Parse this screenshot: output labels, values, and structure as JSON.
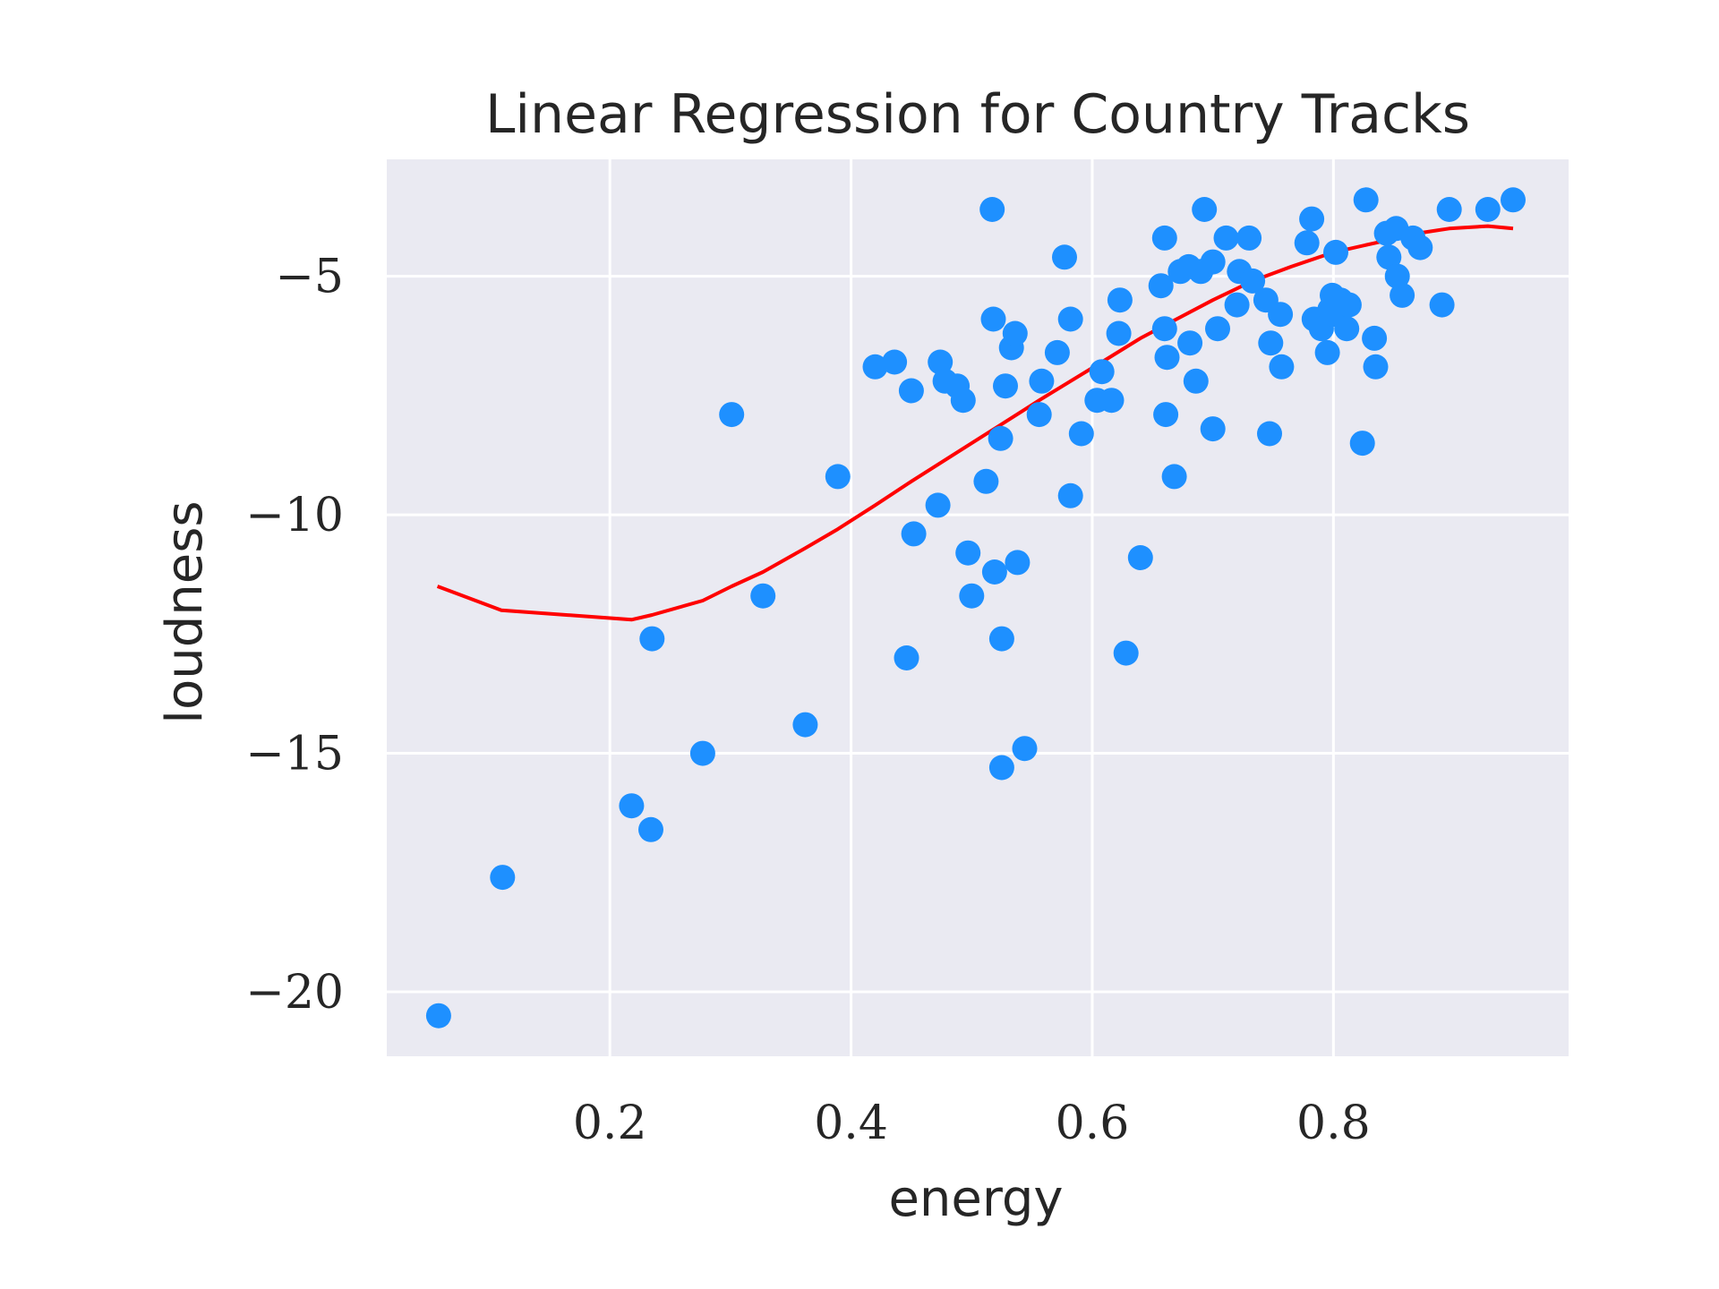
{
  "chart_data": {
    "type": "scatter",
    "title": "Linear Regression for Country Tracks",
    "xlabel": "energy",
    "ylabel": "loudness",
    "xlim": [
      0.015,
      0.995
    ],
    "ylim": [
      -21.35,
      -2.55
    ],
    "xticks": [
      0.2,
      0.4,
      0.6,
      0.8
    ],
    "xtick_labels": [
      "0.2",
      "0.4",
      "0.6",
      "0.8"
    ],
    "yticks": [
      -5,
      -10,
      -15,
      -20
    ],
    "ytick_labels": [
      "−5",
      "−10",
      "−15",
      "−20"
    ],
    "grid": true,
    "point_color": "#1e90ff",
    "line_color": "#ff0000",
    "background_color": "#eaeaf2",
    "series": [
      {
        "type": "scatter",
        "points": [
          [
            0.058,
            -20.5
          ],
          [
            0.111,
            -17.6
          ],
          [
            0.218,
            -16.1
          ],
          [
            0.234,
            -16.6
          ],
          [
            0.235,
            -12.6
          ],
          [
            0.277,
            -15.0
          ],
          [
            0.301,
            -7.9
          ],
          [
            0.327,
            -11.7
          ],
          [
            0.362,
            -14.4
          ],
          [
            0.389,
            -9.2
          ],
          [
            0.42,
            -6.9
          ],
          [
            0.436,
            -6.8
          ],
          [
            0.446,
            -13.0
          ],
          [
            0.45,
            -7.4
          ],
          [
            0.452,
            -10.4
          ],
          [
            0.472,
            -9.8
          ],
          [
            0.474,
            -6.8
          ],
          [
            0.478,
            -7.2
          ],
          [
            0.488,
            -7.3
          ],
          [
            0.493,
            -7.6
          ],
          [
            0.497,
            -10.8
          ],
          [
            0.5,
            -11.7
          ],
          [
            0.512,
            -9.3
          ],
          [
            0.517,
            -3.6
          ],
          [
            0.518,
            -5.9
          ],
          [
            0.519,
            -11.2
          ],
          [
            0.524,
            -8.4
          ],
          [
            0.525,
            -15.3
          ],
          [
            0.525,
            -12.6
          ],
          [
            0.528,
            -7.3
          ],
          [
            0.533,
            -6.5
          ],
          [
            0.536,
            -6.2
          ],
          [
            0.538,
            -11.0
          ],
          [
            0.544,
            -14.9
          ],
          [
            0.556,
            -7.9
          ],
          [
            0.558,
            -7.2
          ],
          [
            0.571,
            -6.6
          ],
          [
            0.577,
            -4.6
          ],
          [
            0.582,
            -5.9
          ],
          [
            0.582,
            -9.6
          ],
          [
            0.591,
            -8.3
          ],
          [
            0.604,
            -7.6
          ],
          [
            0.608,
            -7.0
          ],
          [
            0.616,
            -7.6
          ],
          [
            0.622,
            -6.2
          ],
          [
            0.623,
            -5.5
          ],
          [
            0.628,
            -12.9
          ],
          [
            0.64,
            -10.9
          ],
          [
            0.657,
            -5.2
          ],
          [
            0.66,
            -4.2
          ],
          [
            0.66,
            -6.1
          ],
          [
            0.661,
            -7.9
          ],
          [
            0.662,
            -6.7
          ],
          [
            0.668,
            -9.2
          ],
          [
            0.673,
            -4.9
          ],
          [
            0.68,
            -4.8
          ],
          [
            0.681,
            -6.4
          ],
          [
            0.686,
            -7.2
          ],
          [
            0.69,
            -4.9
          ],
          [
            0.693,
            -3.6
          ],
          [
            0.7,
            -8.2
          ],
          [
            0.7,
            -4.7
          ],
          [
            0.704,
            -6.1
          ],
          [
            0.711,
            -4.2
          ],
          [
            0.72,
            -5.6
          ],
          [
            0.722,
            -4.9
          ],
          [
            0.73,
            -4.2
          ],
          [
            0.733,
            -5.1
          ],
          [
            0.744,
            -5.5
          ],
          [
            0.747,
            -8.3
          ],
          [
            0.748,
            -6.4
          ],
          [
            0.756,
            -5.8
          ],
          [
            0.757,
            -6.9
          ],
          [
            0.778,
            -4.3
          ],
          [
            0.782,
            -3.8
          ],
          [
            0.784,
            -5.9
          ],
          [
            0.79,
            -6.1
          ],
          [
            0.795,
            -6.6
          ],
          [
            0.797,
            -5.7
          ],
          [
            0.799,
            -5.4
          ],
          [
            0.8,
            -5.8
          ],
          [
            0.802,
            -4.5
          ],
          [
            0.806,
            -5.5
          ],
          [
            0.811,
            -6.1
          ],
          [
            0.813,
            -5.6
          ],
          [
            0.824,
            -8.5
          ],
          [
            0.827,
            -3.4
          ],
          [
            0.834,
            -6.3
          ],
          [
            0.835,
            -6.9
          ],
          [
            0.844,
            -4.1
          ],
          [
            0.846,
            -4.6
          ],
          [
            0.852,
            -4.0
          ],
          [
            0.853,
            -5.0
          ],
          [
            0.857,
            -5.4
          ],
          [
            0.866,
            -4.2
          ],
          [
            0.872,
            -4.4
          ],
          [
            0.89,
            -5.6
          ],
          [
            0.896,
            -3.6
          ],
          [
            0.928,
            -3.6
          ],
          [
            0.949,
            -3.4
          ]
        ]
      },
      {
        "type": "line",
        "points": [
          [
            0.057,
            -11.5
          ],
          [
            0.11,
            -12.0
          ],
          [
            0.218,
            -12.2
          ],
          [
            0.235,
            -12.1
          ],
          [
            0.277,
            -11.8
          ],
          [
            0.301,
            -11.5
          ],
          [
            0.327,
            -11.2
          ],
          [
            0.362,
            -10.7
          ],
          [
            0.389,
            -10.3
          ],
          [
            0.42,
            -9.8
          ],
          [
            0.45,
            -9.3
          ],
          [
            0.475,
            -8.9
          ],
          [
            0.5,
            -8.5
          ],
          [
            0.525,
            -8.1
          ],
          [
            0.556,
            -7.6
          ],
          [
            0.582,
            -7.2
          ],
          [
            0.608,
            -6.8
          ],
          [
            0.64,
            -6.3
          ],
          [
            0.67,
            -5.9
          ],
          [
            0.7,
            -5.5
          ],
          [
            0.733,
            -5.1
          ],
          [
            0.765,
            -4.8
          ],
          [
            0.8,
            -4.5
          ],
          [
            0.835,
            -4.3
          ],
          [
            0.87,
            -4.1
          ],
          [
            0.896,
            -4.0
          ],
          [
            0.928,
            -3.95
          ],
          [
            0.949,
            -4.0
          ]
        ]
      }
    ]
  }
}
